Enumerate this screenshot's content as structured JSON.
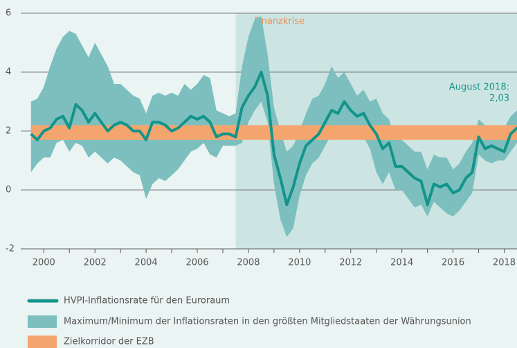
{
  "chart_data": {
    "type": "line_band",
    "xlim": [
      1999.1,
      2018.5
    ],
    "ylim": [
      -2,
      6
    ],
    "yticks": [
      -2,
      0,
      2,
      4,
      6
    ],
    "xticks": [
      2000,
      2002,
      2004,
      2006,
      2008,
      2010,
      2012,
      2014,
      2016,
      2018
    ],
    "xminorticks": [
      2001,
      2003,
      2005,
      2007,
      2009,
      2011,
      2013,
      2015,
      2017
    ],
    "crisis": {
      "label": "Finanzkrise",
      "start": 2007.5,
      "color": "#cde5e2"
    },
    "corridor": {
      "name": "Zielkorridor der EZB",
      "color": "#f4a56e",
      "values": [
        1.7,
        2.2
      ]
    },
    "annotation": [
      "August 2018:",
      "2,03"
    ],
    "x": [
      1999.5,
      1999.75,
      2000,
      2000.25,
      2000.5,
      2000.75,
      2001,
      2001.25,
      2001.5,
      2001.75,
      2002,
      2002.25,
      2002.5,
      2002.75,
      2003,
      2003.25,
      2003.5,
      2003.75,
      2004,
      2004.25,
      2004.5,
      2004.75,
      2005,
      2005.25,
      2005.5,
      2005.75,
      2006,
      2006.25,
      2006.5,
      2006.75,
      2007,
      2007.25,
      2007.5,
      2007.75,
      2008,
      2008.25,
      2008.5,
      2008.75,
      2009,
      2009.25,
      2009.5,
      2009.75,
      2010,
      2010.25,
      2010.5,
      2010.75,
      2011,
      2011.25,
      2011.5,
      2011.75,
      2012,
      2012.25,
      2012.5,
      2012.75,
      2013,
      2013.25,
      2013.5,
      2013.75,
      2014,
      2014.25,
      2014.5,
      2014.75,
      2015,
      2015.25,
      2015.5,
      2015.75,
      2016,
      2016.25,
      2016.5,
      2016.75,
      2017,
      2017.25,
      2017.5,
      2017.75,
      2018,
      2018.25,
      2018.5,
      2018.6
    ],
    "band": {
      "name": "Maximum/Minimum der Inflationsraten in den größten Mitgliedstaaten der Währungsunion",
      "color": "#7cbfbe",
      "max": [
        3.0,
        3.1,
        3.5,
        4.2,
        4.8,
        5.2,
        5.4,
        5.3,
        4.9,
        4.5,
        5.0,
        4.6,
        4.2,
        3.6,
        3.6,
        3.4,
        3.2,
        3.1,
        2.6,
        3.2,
        3.3,
        3.2,
        3.3,
        3.2,
        3.6,
        3.4,
        3.6,
        3.9,
        3.8,
        2.7,
        2.6,
        2.5,
        2.6,
        4.2,
        5.2,
        5.8,
        5.9,
        4.6,
        2.8,
        2.0,
        1.3,
        1.5,
        2.0,
        2.6,
        3.1,
        3.2,
        3.6,
        4.2,
        3.8,
        4.0,
        3.6,
        3.2,
        3.4,
        3.0,
        3.1,
        2.6,
        2.4,
        1.7,
        1.7,
        1.5,
        1.3,
        1.3,
        0.7,
        1.2,
        1.1,
        1.1,
        0.7,
        0.9,
        1.3,
        1.6,
        2.4,
        2.2,
        2.2,
        2.1,
        2.1,
        2.5,
        2.7,
        2.6
      ],
      "min": [
        0.6,
        0.9,
        1.1,
        1.1,
        1.6,
        1.7,
        1.3,
        1.6,
        1.5,
        1.1,
        1.3,
        1.1,
        0.9,
        1.1,
        1.0,
        0.8,
        0.6,
        0.5,
        -0.3,
        0.2,
        0.4,
        0.3,
        0.5,
        0.7,
        1.0,
        1.3,
        1.4,
        1.6,
        1.2,
        1.1,
        1.5,
        1.5,
        1.5,
        1.6,
        2.3,
        2.7,
        3.0,
        2.3,
        0.2,
        -1.0,
        -1.6,
        -1.3,
        -0.2,
        0.5,
        0.9,
        1.1,
        1.5,
        1.9,
        1.7,
        1.9,
        1.9,
        1.8,
        1.8,
        1.4,
        0.6,
        0.2,
        0.6,
        0.0,
        0.0,
        -0.3,
        -0.6,
        -0.5,
        -0.9,
        -0.4,
        -0.6,
        -0.8,
        -0.9,
        -0.7,
        -0.4,
        -0.1,
        1.2,
        1.0,
        0.9,
        1.0,
        1.0,
        1.3,
        1.6,
        1.6
      ]
    },
    "series": [
      {
        "name": "HVPI-Inflationsrate für den Euroraum",
        "color": "#13948a",
        "values": [
          1.9,
          1.7,
          2.0,
          2.1,
          2.4,
          2.5,
          2.1,
          2.9,
          2.7,
          2.3,
          2.6,
          2.3,
          2.0,
          2.2,
          2.3,
          2.2,
          2.0,
          2.0,
          1.7,
          2.3,
          2.3,
          2.2,
          2.0,
          2.1,
          2.3,
          2.5,
          2.4,
          2.5,
          2.3,
          1.8,
          1.9,
          1.9,
          1.8,
          2.8,
          3.2,
          3.5,
          4.0,
          3.2,
          1.2,
          0.4,
          -0.5,
          0.1,
          0.9,
          1.5,
          1.7,
          1.9,
          2.3,
          2.7,
          2.6,
          3.0,
          2.7,
          2.5,
          2.6,
          2.2,
          1.9,
          1.4,
          1.6,
          0.8,
          0.8,
          0.6,
          0.4,
          0.3,
          -0.5,
          0.2,
          0.1,
          0.2,
          -0.1,
          0.0,
          0.4,
          0.6,
          1.8,
          1.4,
          1.5,
          1.4,
          1.3,
          1.9,
          2.1,
          2.03
        ]
      }
    ]
  }
}
